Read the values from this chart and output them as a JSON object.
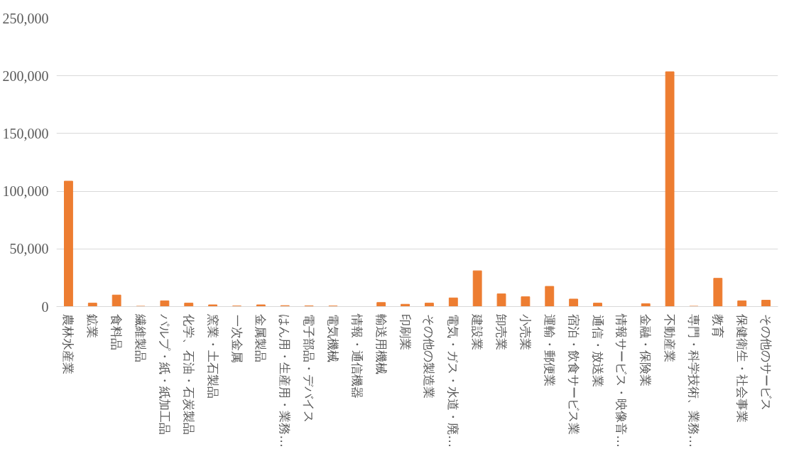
{
  "chart_data": {
    "type": "bar",
    "categories": [
      "農林水産業",
      "鉱業",
      "食料品",
      "繊維製品",
      "パルプ・紙・紙加工品",
      "化学、石油・石炭製品",
      "窯業・土石製品",
      "一次金属",
      "金属製品",
      "はん用・生産用・業務…",
      "電子部品・デバイス",
      "電気機械",
      "情報・通信機器",
      "輸送用機械",
      "印刷業",
      "その他の製造業",
      "電気・ガス・水道・廃…",
      "建設業",
      "卸売業",
      "小売業",
      "運輸・郵便業",
      "宿泊・飲食サービス業",
      "通信・放送業",
      "情報サービス・映像音…",
      "金融・保険業",
      "不動産業",
      "専門・科学技術、業務…",
      "教育",
      "保健衛生・社会事業",
      "その他のサービス"
    ],
    "values": [
      108700,
      3000,
      10000,
      300,
      5000,
      3000,
      1500,
      500,
      1500,
      800,
      600,
      500,
      0,
      3500,
      2000,
      3000,
      7500,
      31000,
      11000,
      8500,
      17500,
      6500,
      3000,
      0,
      2500,
      203500,
      300,
      24500,
      5000,
      5500
    ],
    "color": "#ed7d31",
    "ylim": [
      0,
      250000
    ],
    "yticks": [
      {
        "value": 0,
        "label": "0"
      },
      {
        "value": 50000,
        "label": "50,000"
      },
      {
        "value": 100000,
        "label": "100,000"
      },
      {
        "value": 150000,
        "label": "150,000"
      },
      {
        "value": 200000,
        "label": "200,000"
      },
      {
        "value": 250000,
        "label": "250,000"
      }
    ],
    "grid": "y"
  }
}
